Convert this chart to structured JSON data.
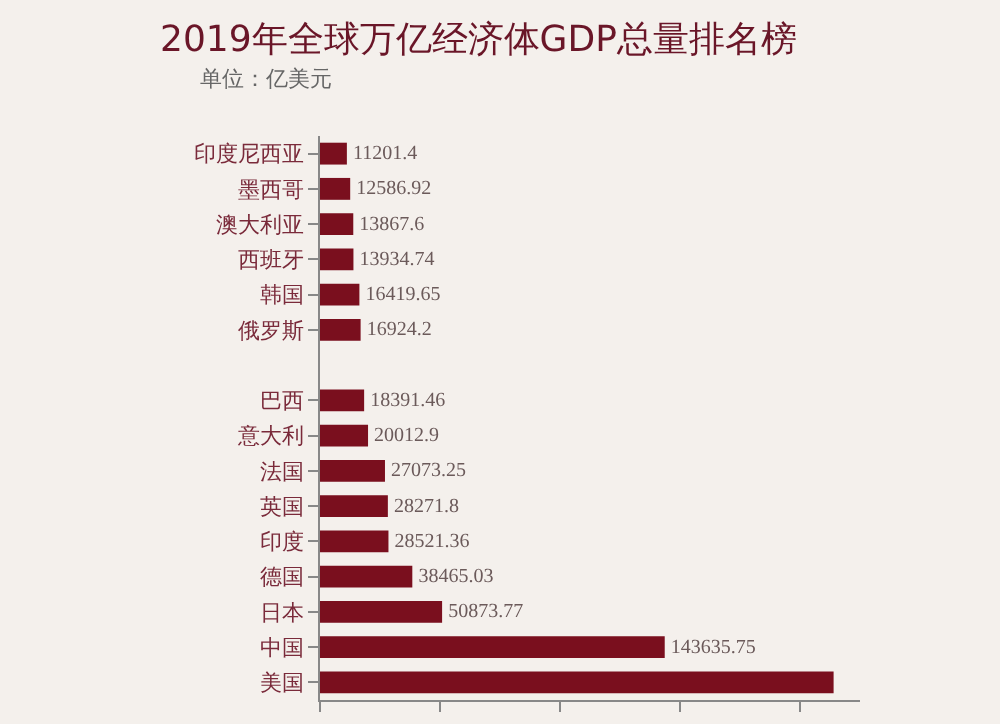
{
  "chart_data": {
    "type": "bar",
    "orientation": "horizontal",
    "title": "2019年全球万亿经济体GDP总量排名榜",
    "subtitle": "单位：亿美元",
    "categories": [
      "印度尼西亚",
      "墨西哥",
      "澳大利亚",
      "西班牙",
      "韩国",
      "俄罗斯",
      null,
      "巴西",
      "意大利",
      "法国",
      "英国",
      "印度",
      "德国",
      "日本",
      "中国",
      "美国"
    ],
    "values": [
      11201.4,
      12586.92,
      13867.6,
      13934.74,
      16419.65,
      16924.2,
      null,
      18391.46,
      20012.9,
      27073.25,
      28271.8,
      28521.36,
      38465.03,
      50873.77,
      143635.75,
      214000
    ],
    "value_labels": [
      "11201.4",
      "12586.92",
      "13867.6",
      "13934.74",
      "16419.65",
      "16924.2",
      null,
      "18391.46",
      "20012.9",
      "27073.25",
      "28271.8",
      "28521.36",
      "38465.03",
      "50873.77",
      "143635.75",
      null
    ],
    "color": "#7a0f1e",
    "xlim": [
      0,
      225000
    ],
    "xticks": [
      {
        "value": 0,
        "label": null
      },
      {
        "value": 50000,
        "label": null
      },
      {
        "value": 100000,
        "label": null
      },
      {
        "value": 150000,
        "label": null
      },
      {
        "value": 200000,
        "label": null
      }
    ],
    "tick_labels": "y"
  }
}
